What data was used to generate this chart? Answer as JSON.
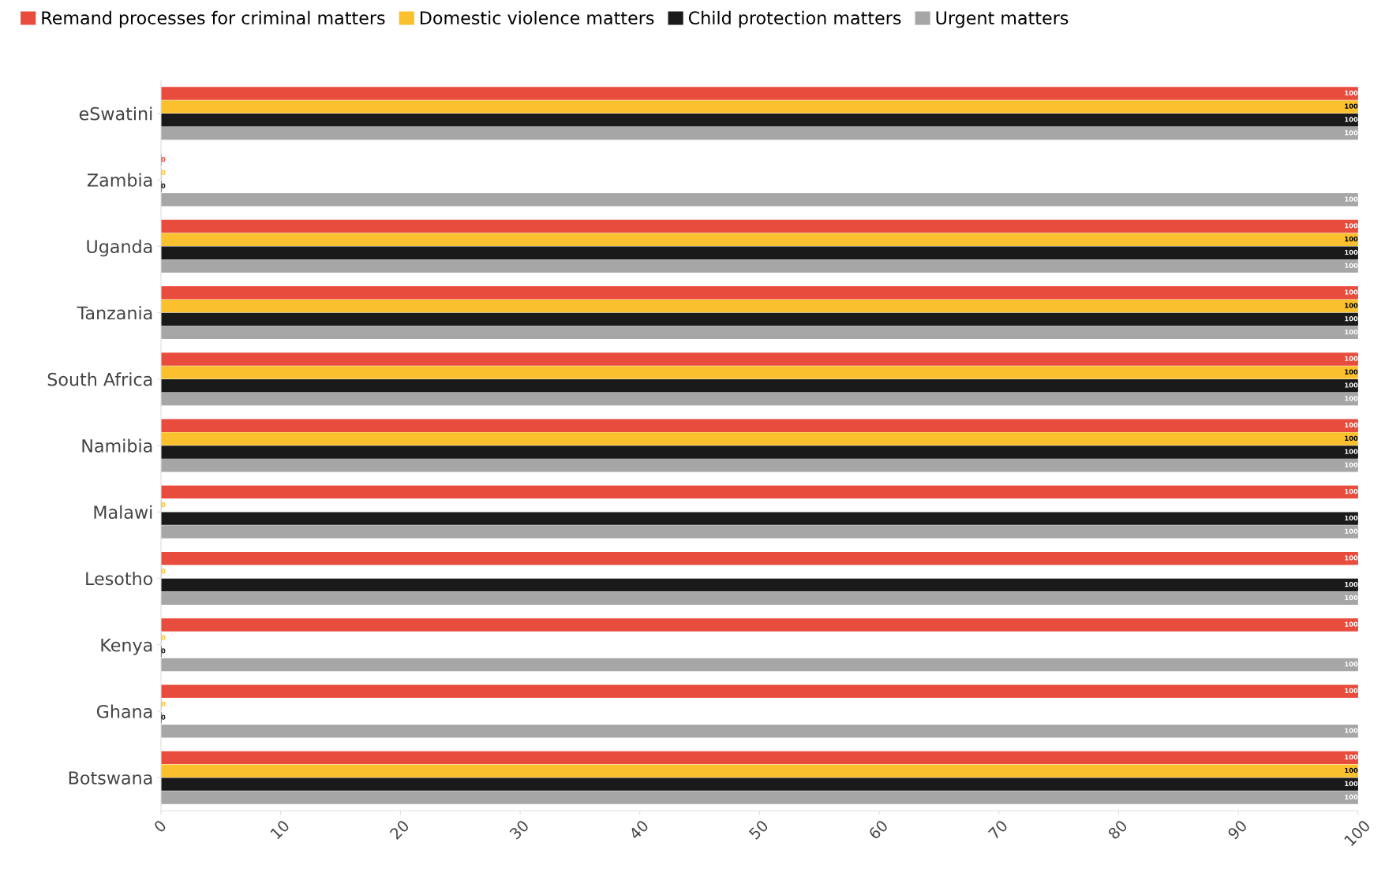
{
  "chart_data": {
    "type": "bar",
    "orientation": "horizontal",
    "categories": [
      "eSwatini",
      "Zambia",
      "Uganda",
      "Tanzania",
      "South Africa",
      "Namibia",
      "Malawi",
      "Lesotho",
      "Kenya",
      "Ghana",
      "Botswana"
    ],
    "series": [
      {
        "name": "Remand processes for criminal matters",
        "color": "#e84c3d",
        "values": [
          100,
          0,
          100,
          100,
          100,
          100,
          100,
          100,
          100,
          100,
          100
        ]
      },
      {
        "name": "Domestic violence matters",
        "color": "#fbc02d",
        "values": [
          100,
          0,
          100,
          100,
          100,
          100,
          0,
          0,
          0,
          0,
          100
        ]
      },
      {
        "name": "Child protection matters",
        "color": "#1a1a1a",
        "values": [
          100,
          0,
          100,
          100,
          100,
          100,
          100,
          100,
          0,
          0,
          100
        ]
      },
      {
        "name": "Urgent matters",
        "color": "#a6a6a6",
        "values": [
          100,
          100,
          100,
          100,
          100,
          100,
          100,
          100,
          100,
          100,
          100
        ]
      }
    ],
    "xlim": [
      0,
      100
    ],
    "xticks": [
      0,
      10,
      20,
      30,
      40,
      50,
      60,
      70,
      80,
      90,
      100
    ],
    "data_labels": true,
    "legend": "top left",
    "grid": false
  }
}
